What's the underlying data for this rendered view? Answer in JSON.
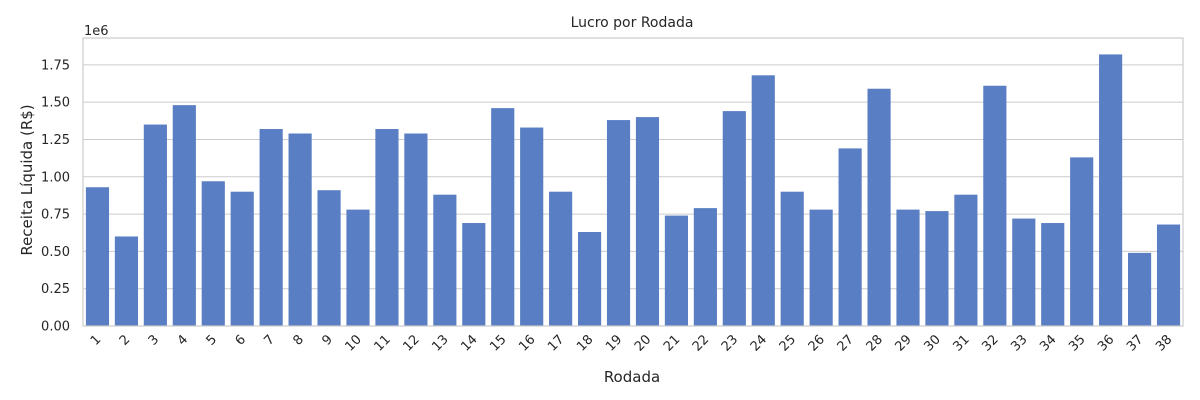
{
  "chart_data": {
    "type": "bar",
    "title": "Lucro por Rodada",
    "xlabel": "Rodada",
    "ylabel": "Receita Líquida (R$)",
    "offset_text": "1e6",
    "categories": [
      "1",
      "2",
      "3",
      "4",
      "5",
      "6",
      "7",
      "8",
      "9",
      "10",
      "11",
      "12",
      "13",
      "14",
      "15",
      "16",
      "17",
      "18",
      "19",
      "20",
      "21",
      "22",
      "23",
      "24",
      "25",
      "26",
      "27",
      "28",
      "29",
      "30",
      "31",
      "32",
      "33",
      "34",
      "35",
      "36",
      "37",
      "38"
    ],
    "values": [
      0.93,
      0.6,
      1.35,
      1.48,
      0.97,
      0.9,
      1.32,
      1.29,
      0.91,
      0.78,
      1.32,
      1.29,
      0.88,
      0.69,
      1.46,
      1.33,
      0.9,
      0.63,
      1.38,
      1.4,
      0.74,
      0.79,
      1.44,
      1.68,
      0.9,
      0.78,
      1.19,
      1.59,
      0.78,
      0.77,
      0.88,
      1.61,
      0.72,
      0.69,
      1.13,
      1.82,
      0.49,
      0.68
    ],
    "value_unit_multiplier": 1000000,
    "ylim": [
      0,
      1.93
    ],
    "yticks": [
      "0.00",
      "0.25",
      "0.50",
      "0.75",
      "1.00",
      "1.25",
      "1.50",
      "1.75"
    ],
    "grid": "horizontal",
    "bar_color": "#5a7ec3",
    "grid_color": "#cccccc",
    "frame_color": "#cccccc"
  }
}
